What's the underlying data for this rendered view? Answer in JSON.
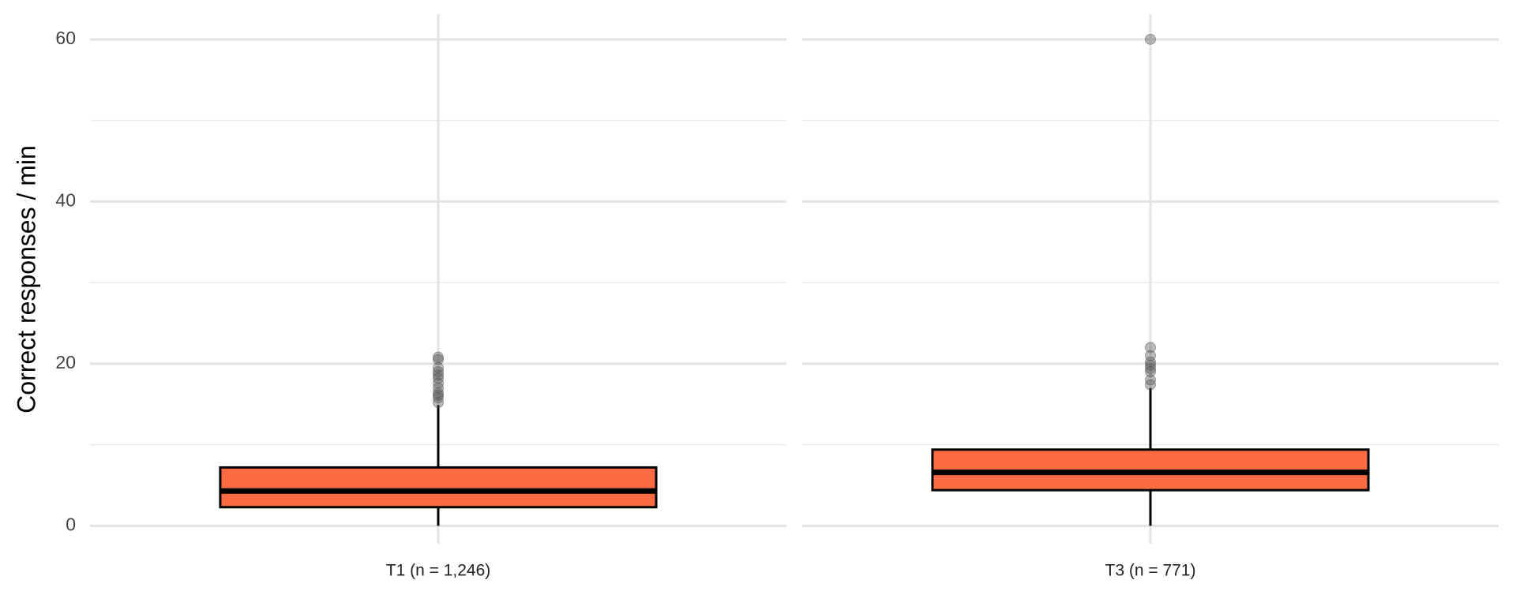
{
  "chart_data": {
    "type": "box",
    "ylabel": "Correct responses / min",
    "categories": [
      "T1 (n = 1,246)",
      "T3 (n = 771)"
    ],
    "boxes": [
      {
        "min": 0,
        "q1": 2.3,
        "median": 4.3,
        "q3": 7.2,
        "max": 14.9,
        "outliers": [
          15.2,
          15.8,
          16.1,
          16.4,
          17.0,
          17.6,
          18.2,
          18.6,
          19.0,
          19.5,
          20.5,
          20.8
        ]
      },
      {
        "min": 0,
        "q1": 4.4,
        "median": 6.6,
        "q3": 9.4,
        "max": 17.0,
        "outliers": [
          17.4,
          18.0,
          19.0,
          19.4,
          19.8,
          20.2,
          21.0,
          22.0,
          60.0
        ]
      }
    ],
    "color": "#fb6a42",
    "outlier_color": "#555555",
    "ylim": [
      -2.2,
      63.1
    ],
    "yticks": [
      0,
      20,
      40,
      60
    ],
    "grid": true,
    "minor_grid": true
  }
}
